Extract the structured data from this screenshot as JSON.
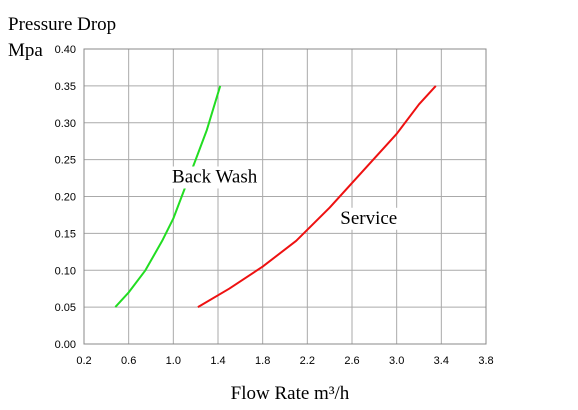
{
  "chart_data": {
    "type": "line",
    "title": "Pressure Drop",
    "ylabel": "Mpa",
    "xlabel": "Flow Rate m³/h",
    "xlim": [
      0.2,
      3.8
    ],
    "ylim": [
      0.0,
      0.4
    ],
    "xticks": [
      "0.2",
      "0.6",
      "1.0",
      "1.4",
      "1.8",
      "2.2",
      "2.6",
      "3.0",
      "3.4",
      "3.8"
    ],
    "yticks": [
      "0.00",
      "0.05",
      "0.10",
      "0.15",
      "0.20",
      "0.25",
      "0.30",
      "0.35",
      "0.40"
    ],
    "grid": true,
    "legend": "none",
    "series": [
      {
        "name": "Back Wash",
        "color": "#22dd22",
        "x": [
          0.48,
          0.6,
          0.75,
          0.9,
          1.0,
          1.1,
          1.2,
          1.3,
          1.42
        ],
        "y": [
          0.05,
          0.07,
          0.1,
          0.14,
          0.17,
          0.21,
          0.25,
          0.29,
          0.35
        ]
      },
      {
        "name": "Service",
        "color": "#ee1111",
        "x": [
          1.22,
          1.5,
          1.8,
          2.1,
          2.4,
          2.7,
          3.0,
          3.2,
          3.35
        ],
        "y": [
          0.05,
          0.075,
          0.105,
          0.14,
          0.185,
          0.235,
          0.285,
          0.325,
          0.35
        ]
      }
    ],
    "annotations": [
      {
        "text": "Back Wash",
        "x": 1.37,
        "y": 0.219
      },
      {
        "text": "Service",
        "x": 2.75,
        "y": 0.163
      }
    ]
  }
}
